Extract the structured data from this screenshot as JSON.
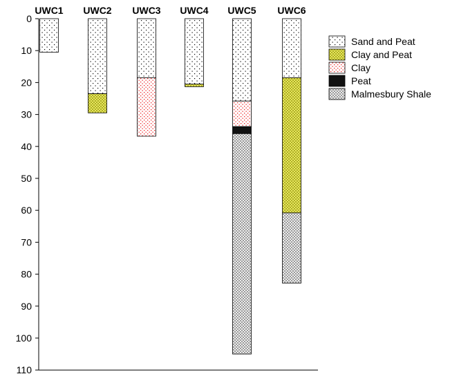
{
  "chart_data": {
    "type": "bar",
    "orientation": "vertical-stacked-depth",
    "categories": [
      "UWC1",
      "UWC2",
      "UWC3",
      "UWC4",
      "UWC5",
      "UWC6"
    ],
    "y_axis": {
      "ylim": [
        0,
        110
      ],
      "inverted": true,
      "ticks": [
        0,
        10,
        20,
        30,
        40,
        50,
        60,
        70,
        80,
        90,
        100,
        110
      ],
      "tick_labels": [
        "0",
        "10",
        "20",
        "30",
        "40",
        "50",
        "60",
        "70",
        "80",
        "90",
        "100",
        "110"
      ]
    },
    "grid": false,
    "legend_position": "right",
    "layer_types": [
      {
        "name": "Sand and Peat",
        "pattern": "dots",
        "color": "#000000",
        "fill": "#ffffff"
      },
      {
        "name": "Clay and Peat",
        "pattern": "crosshatch",
        "color": "#8a8a00",
        "fill": "#eeee66"
      },
      {
        "name": "Clay",
        "pattern": "dots",
        "color": "#ee2222",
        "fill": "#ffffff"
      },
      {
        "name": "Peat",
        "pattern": "solid",
        "color": "#000000",
        "fill": "#111111"
      },
      {
        "name": "Malmesbury Shale",
        "pattern": "crosshatch",
        "color": "#777777",
        "fill": "#ffffff"
      }
    ],
    "columns": [
      {
        "label": "UWC1",
        "layers": [
          {
            "type": "Sand and Peat",
            "top": 0,
            "bottom": 10.5
          }
        ]
      },
      {
        "label": "UWC2",
        "layers": [
          {
            "type": "Sand and Peat",
            "top": 0,
            "bottom": 23.5
          },
          {
            "type": "Clay and Peat",
            "top": 23.5,
            "bottom": 29.5
          }
        ]
      },
      {
        "label": "UWC3",
        "layers": [
          {
            "type": "Sand and Peat",
            "top": 0,
            "bottom": 18.5
          },
          {
            "type": "Clay",
            "top": 18.5,
            "bottom": 36.8
          }
        ]
      },
      {
        "label": "UWC4",
        "layers": [
          {
            "type": "Sand and Peat",
            "top": 0,
            "bottom": 20.5
          },
          {
            "type": "Clay and Peat",
            "top": 20.5,
            "bottom": 21.3
          }
        ]
      },
      {
        "label": "UWC5",
        "layers": [
          {
            "type": "Sand and Peat",
            "top": 0,
            "bottom": 25.8
          },
          {
            "type": "Clay",
            "top": 25.8,
            "bottom": 33.8
          },
          {
            "type": "Peat",
            "top": 33.8,
            "bottom": 36.0
          },
          {
            "type": "Malmesbury Shale",
            "top": 36.0,
            "bottom": 105.0
          }
        ]
      },
      {
        "label": "UWC6",
        "layers": [
          {
            "type": "Sand and Peat",
            "top": 0,
            "bottom": 18.5
          },
          {
            "type": "Clay and Peat",
            "top": 18.5,
            "bottom": 60.8
          },
          {
            "type": "Malmesbury Shale",
            "top": 60.8,
            "bottom": 82.8
          }
        ]
      }
    ]
  }
}
